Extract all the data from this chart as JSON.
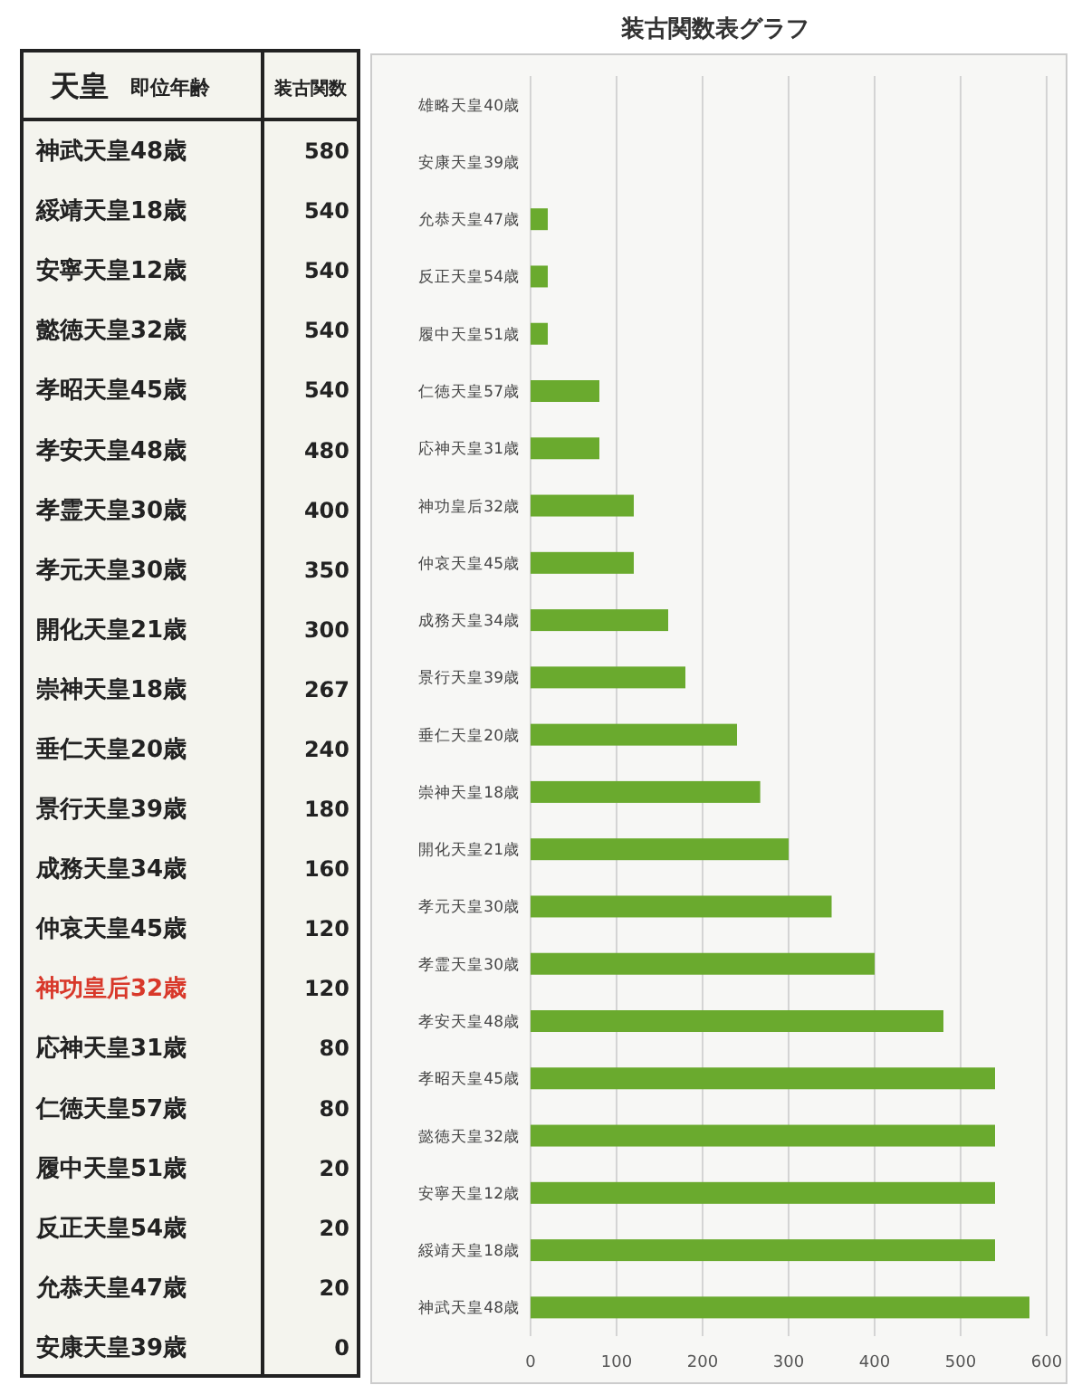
{
  "chart_data": [
    {
      "type": "other",
      "data_labels": true,
      "annotations": [
        "天皇",
        "即位年齢",
        "装古関数"
      ],
      "categories": [
        "神武天皇48歳",
        "綏靖天皇18歳",
        "安寧天皇12歳",
        "懿徳天皇32歳",
        "孝昭天皇45歳",
        "孝安天皇48歳",
        "孝霊天皇30歳",
        "孝元天皇30歳",
        "開化天皇21歳",
        "崇神天皇18歳",
        "垂仁天皇20歳",
        "景行天皇39歳",
        "成務天皇34歳",
        "仲哀天皇45歳",
        "神功皇后32歳",
        "応神天皇31歳",
        "仁徳天皇57歳",
        "履中天皇51歳",
        "反正天皇54歳",
        "允恭天皇47歳",
        "安康天皇39歳"
      ],
      "values": [
        580,
        540,
        540,
        540,
        540,
        480,
        400,
        350,
        300,
        267,
        240,
        180,
        160,
        120,
        120,
        80,
        80,
        20,
        20,
        20,
        0
      ],
      "colors": [
        "#222222",
        "#222222",
        "#222222",
        "#222222",
        "#222222",
        "#222222",
        "#222222",
        "#222222",
        "#222222",
        "#222222",
        "#222222",
        "#222222",
        "#222222",
        "#222222",
        "#d8382a",
        "#222222",
        "#222222",
        "#222222",
        "#222222",
        "#222222",
        "#222222"
      ]
    },
    {
      "type": "bar",
      "orientation": "horizontal",
      "title": "装古関数表グラフ",
      "categories": [
        "雄略天皇40歳",
        "安康天皇39歳",
        "允恭天皇47歳",
        "反正天皇54歳",
        "履中天皇51歳",
        "仁徳天皇57歳",
        "応神天皇31歳",
        "神功皇后32歳",
        "仲哀天皇45歳",
        "成務天皇34歳",
        "景行天皇39歳",
        "垂仁天皇20歳",
        "崇神天皇18歳",
        "開化天皇21歳",
        "孝元天皇30歳",
        "孝霊天皇30歳",
        "孝安天皇48歳",
        "孝昭天皇45歳",
        "懿徳天皇32歳",
        "安寧天皇12歳",
        "綏靖天皇18歳",
        "神武天皇48歳"
      ],
      "values": [
        0,
        0,
        20,
        20,
        20,
        80,
        80,
        120,
        120,
        160,
        180,
        240,
        267,
        300,
        350,
        400,
        480,
        540,
        540,
        540,
        540,
        580
      ],
      "color": "#6aaa2e",
      "xlim": [
        0,
        600
      ],
      "xticks": [
        0,
        100,
        200,
        300,
        400,
        500,
        600
      ],
      "grid": "x"
    }
  ]
}
